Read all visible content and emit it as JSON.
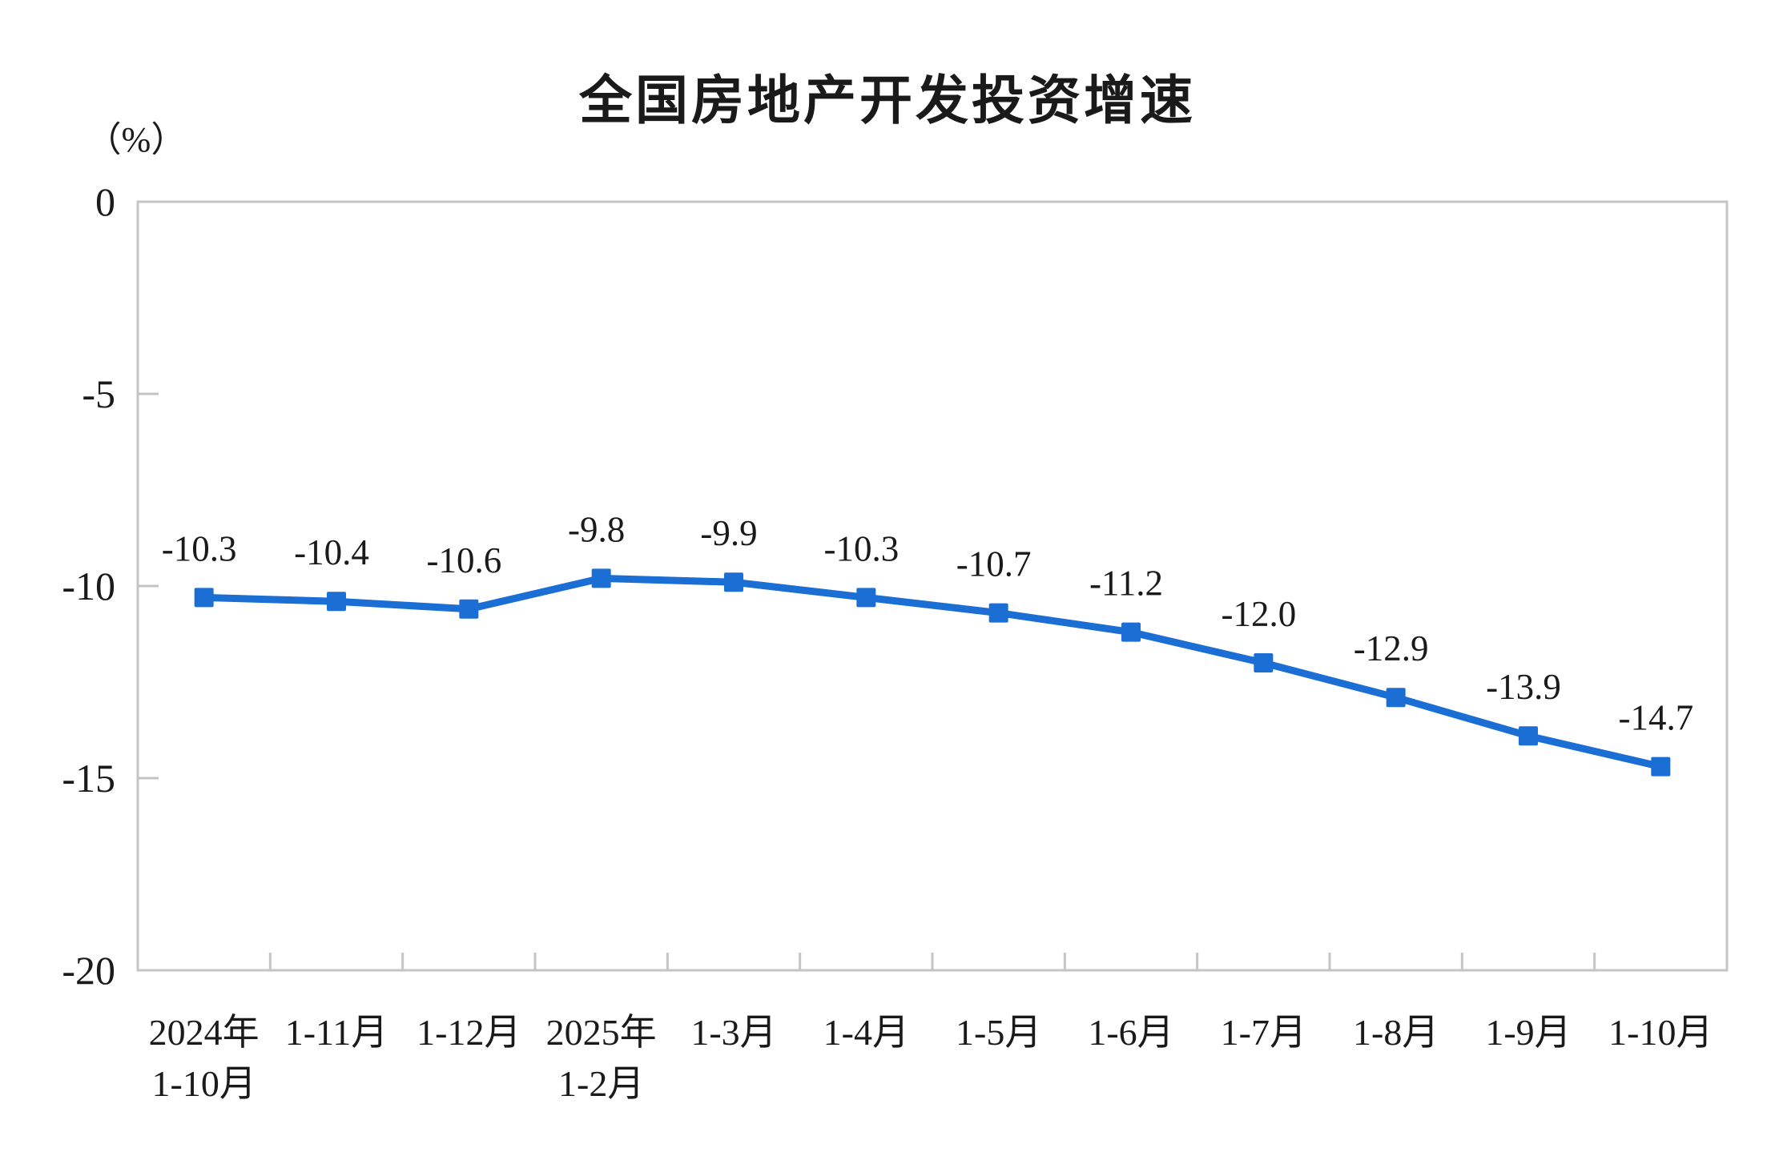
{
  "page": {
    "background": "#ffffff"
  },
  "chart_data": {
    "type": "line",
    "title": "全国房地产开发投资增速",
    "ylabel": "（%）",
    "xlabel": "",
    "categories": [
      "2024年\n1-10月",
      "1-11月",
      "1-12月",
      "2025年\n1-2月",
      "1-3月",
      "1-4月",
      "1-5月",
      "1-6月",
      "1-7月",
      "1-8月",
      "1-9月",
      "1-10月"
    ],
    "series": [
      {
        "name": "全国房地产开发投资增速",
        "values": [
          -10.3,
          -10.4,
          -10.6,
          -9.8,
          -9.9,
          -10.3,
          -10.7,
          -11.2,
          -12.0,
          -12.9,
          -13.9,
          -14.7
        ],
        "data_labels": [
          "-10.3",
          "-10.4",
          "-10.6",
          "-9.8",
          "-9.9",
          "-10.3",
          "-10.7",
          "-11.2",
          "-12.0",
          "-12.9",
          "-13.9",
          "-14.7"
        ]
      }
    ],
    "ylim": [
      -20,
      0
    ],
    "yticks": [
      0,
      -5,
      -10,
      -15,
      -20
    ],
    "ytick_labels": [
      "0",
      "-5",
      "-10",
      "-15",
      "-20"
    ],
    "grid": false,
    "legend": "none",
    "marker": "square",
    "colors": {
      "line": "#1b6ed3",
      "marker": "#1b6ed3",
      "axis": "#c4c4c4",
      "text": "#1a1a1a",
      "data_label": "#1a1a1a"
    }
  }
}
